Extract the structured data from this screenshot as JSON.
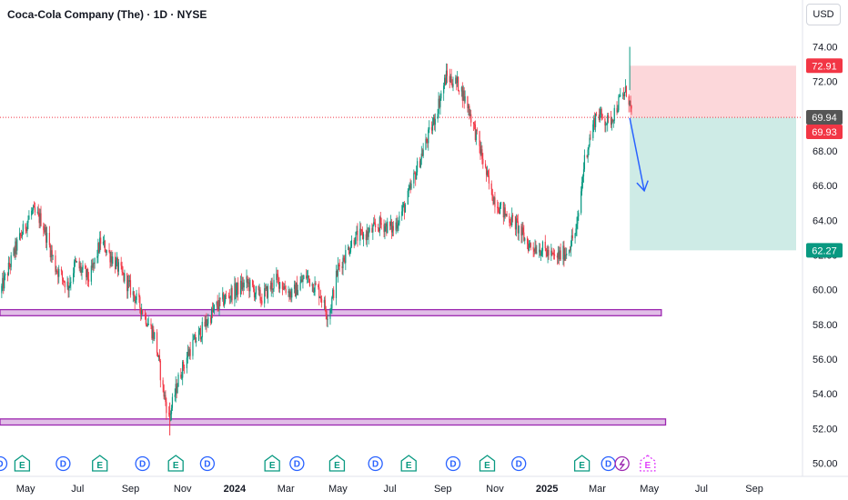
{
  "header": {
    "symbol_title": "Coca-Cola Company (The) · 1D · NYSE",
    "currency_button": "USD"
  },
  "chart_data": {
    "type": "candlestick",
    "title": "Coca-Cola Company (The) · 1D · NYSE",
    "currency": "USD",
    "ylim": [
      49.5,
      75.2
    ],
    "y_ticks": [
      "50.00",
      "52.00",
      "54.00",
      "56.00",
      "58.00",
      "60.00",
      "62.00",
      "64.00",
      "66.00",
      "68.00",
      "70.00",
      "72.00",
      "74.00"
    ],
    "x_ticks": [
      "May",
      "Jul",
      "Sep",
      "Nov",
      "2024",
      "Mar",
      "May",
      "Jul",
      "Sep",
      "Nov",
      "2025",
      "Mar",
      "May",
      "Jul",
      "Sep"
    ],
    "bold_x_ticks": [
      "2024",
      "2025"
    ],
    "x_start": "2023-04-01",
    "x_end": "2025-10-20",
    "price_path": [
      [
        "2023-04-01",
        59.8
      ],
      [
        "2023-04-20",
        62.5
      ],
      [
        "2023-05-08",
        64.5
      ],
      [
        "2023-05-20",
        64.0
      ],
      [
        "2023-06-05",
        61.3
      ],
      [
        "2023-06-20",
        60.2
      ],
      [
        "2023-06-28",
        61.5
      ],
      [
        "2023-07-15",
        60.6
      ],
      [
        "2023-07-28",
        62.8
      ],
      [
        "2023-08-12",
        61.7
      ],
      [
        "2023-08-30",
        60.2
      ],
      [
        "2023-09-15",
        58.8
      ],
      [
        "2023-09-30",
        57.2
      ],
      [
        "2023-10-08",
        54.5
      ],
      [
        "2023-10-16",
        52.6
      ],
      [
        "2023-10-28",
        55.0
      ],
      [
        "2023-11-10",
        56.6
      ],
      [
        "2023-11-25",
        57.8
      ],
      [
        "2023-12-10",
        59.0
      ],
      [
        "2023-12-28",
        59.8
      ],
      [
        "2024-01-15",
        60.4
      ],
      [
        "2024-02-01",
        59.5
      ],
      [
        "2024-02-20",
        60.6
      ],
      [
        "2024-03-08",
        59.7
      ],
      [
        "2024-03-25",
        60.8
      ],
      [
        "2024-04-10",
        59.8
      ],
      [
        "2024-04-20",
        58.4
      ],
      [
        "2024-05-01",
        61.2
      ],
      [
        "2024-05-20",
        63.0
      ],
      [
        "2024-06-05",
        63.2
      ],
      [
        "2024-06-20",
        63.8
      ],
      [
        "2024-07-05",
        63.5
      ],
      [
        "2024-07-20",
        65.0
      ],
      [
        "2024-08-05",
        67.5
      ],
      [
        "2024-08-20",
        69.5
      ],
      [
        "2024-09-05",
        72.3
      ],
      [
        "2024-09-20",
        71.8
      ],
      [
        "2024-10-01",
        70.5
      ],
      [
        "2024-10-15",
        68.0
      ],
      [
        "2024-10-28",
        65.5
      ],
      [
        "2024-11-10",
        64.5
      ],
      [
        "2024-11-25",
        63.8
      ],
      [
        "2024-12-10",
        62.6
      ],
      [
        "2024-12-28",
        62.3
      ],
      [
        "2025-01-10",
        61.8
      ],
      [
        "2025-01-24",
        62.2
      ],
      [
        "2025-02-05",
        63.5
      ],
      [
        "2025-02-14",
        67.5
      ],
      [
        "2025-02-28",
        70.2
      ],
      [
        "2025-03-15",
        69.6
      ],
      [
        "2025-03-28",
        71.0
      ],
      [
        "2025-04-05",
        71.5
      ],
      [
        "2025-04-10",
        70.2
      ]
    ],
    "wick_extremes": {
      "high": {
        "date": "2025-04-08",
        "value": 74.0
      },
      "low": {
        "date": "2023-10-17",
        "value": 51.6
      }
    },
    "candle_colors": {
      "up": "#089981",
      "down": "#f23645"
    },
    "support_zones": [
      {
        "from": "2023-04-01",
        "to": "2025-05-15",
        "low": 58.5,
        "high": 58.85
      },
      {
        "from": "2023-04-01",
        "to": "2025-05-20",
        "low": 52.2,
        "high": 52.55
      }
    ],
    "zone_color": "#e1bee7",
    "zone_border": "#9c27b0",
    "position": {
      "type": "short",
      "from": "2025-04-08",
      "to": "2025-10-20",
      "entry": 69.93,
      "stop_loss": 72.91,
      "take_profit": 62.27
    },
    "arrow": {
      "from": [
        "2025-04-08",
        69.9
      ],
      "to": [
        "2025-04-25",
        65.7
      ],
      "color": "#2962ff"
    },
    "horizontal_line": {
      "value": 69.93,
      "style": "dotted",
      "color": "#f23645"
    },
    "price_tags": [
      {
        "value": 72.91,
        "label": "72.91",
        "color": "#f23645"
      },
      {
        "value": 69.94,
        "label": "69.94",
        "color": "#555555"
      },
      {
        "value": 69.93,
        "label": "69.93",
        "color": "#f23645"
      },
      {
        "value": 62.27,
        "label": "62.27",
        "color": "#089981"
      }
    ],
    "events": [
      {
        "date": "2023-04-01",
        "type": "D"
      },
      {
        "date": "2023-04-27",
        "type": "E"
      },
      {
        "date": "2023-06-14",
        "type": "D"
      },
      {
        "date": "2023-07-27",
        "type": "E"
      },
      {
        "date": "2023-09-15",
        "type": "D"
      },
      {
        "date": "2023-10-24",
        "type": "E"
      },
      {
        "date": "2023-11-30",
        "type": "D"
      },
      {
        "date": "2024-02-14",
        "type": "E"
      },
      {
        "date": "2024-03-14",
        "type": "D"
      },
      {
        "date": "2024-04-30",
        "type": "E"
      },
      {
        "date": "2024-06-14",
        "type": "D"
      },
      {
        "date": "2024-07-23",
        "type": "E"
      },
      {
        "date": "2024-09-13",
        "type": "D"
      },
      {
        "date": "2024-10-23",
        "type": "E"
      },
      {
        "date": "2024-11-29",
        "type": "D"
      },
      {
        "date": "2025-02-11",
        "type": "E"
      },
      {
        "date": "2025-03-14",
        "type": "D"
      },
      {
        "date": "2025-03-30",
        "type": "S"
      },
      {
        "date": "2025-04-29",
        "type": "E",
        "future": true
      }
    ]
  }
}
